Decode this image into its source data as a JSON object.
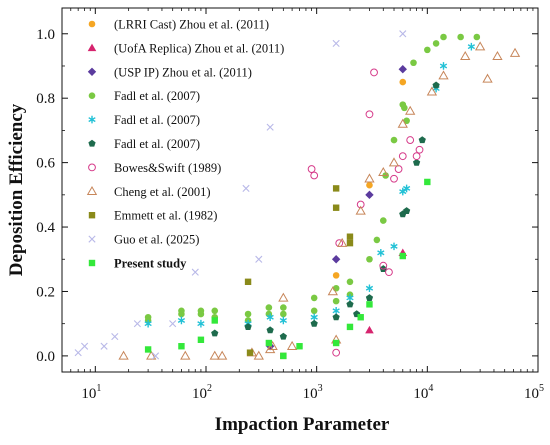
{
  "chart_data": {
    "type": "scatter",
    "xlabel": "Impaction Parameter",
    "ylabel": "Deposition Efficiency",
    "xscale": "log",
    "xlim": [
      5,
      100000
    ],
    "ylim": [
      -0.05,
      1.08
    ],
    "x_ticks": [
      {
        "value": 10,
        "mant": "10",
        "exp": "1"
      },
      {
        "value": 100,
        "mant": "10",
        "exp": "2"
      },
      {
        "value": 1000,
        "mant": "10",
        "exp": "3"
      },
      {
        "value": 10000,
        "mant": "10",
        "exp": "4"
      },
      {
        "value": 100000,
        "mant": "10",
        "exp": "5"
      }
    ],
    "y_ticks": [
      {
        "value": 0.0,
        "label": "0.0"
      },
      {
        "value": 0.2,
        "label": "0.2"
      },
      {
        "value": 0.4,
        "label": "0.4"
      },
      {
        "value": 0.6,
        "label": "0.6"
      },
      {
        "value": 0.8,
        "label": "0.8"
      },
      {
        "value": 1.0,
        "label": "1.0"
      }
    ],
    "grid": false,
    "legend_position": "top-left",
    "series": [
      {
        "name": "(LRRI Cast) Zhou et al. (2011)",
        "marker": "circle",
        "color": "#f5a623",
        "filled": true,
        "bold": false,
        "points": [
          [
            1500,
            0.25
          ],
          [
            3000,
            0.53
          ],
          [
            6000,
            0.85
          ]
        ]
      },
      {
        "name": "(UofA Replica) Zhou et al. (2011)",
        "marker": "triangle",
        "color": "#d6246e",
        "filled": true,
        "bold": false,
        "points": [
          [
            3000,
            0.08
          ],
          [
            6000,
            0.32
          ]
        ]
      },
      {
        "name": "(USP IP) Zhou et al. (2011)",
        "marker": "diamond",
        "color": "#5b3b9e",
        "filled": true,
        "bold": false,
        "points": [
          [
            380,
            0.03
          ],
          [
            1500,
            0.3
          ],
          [
            3000,
            0.5
          ],
          [
            6000,
            0.89
          ]
        ]
      },
      {
        "name": "Fadl et al. (2007)",
        "marker": "circle",
        "color": "#7ac943",
        "filled": true,
        "bold": false,
        "points": [
          [
            30,
            0.11
          ],
          [
            30,
            0.12
          ],
          [
            60,
            0.13
          ],
          [
            60,
            0.14
          ],
          [
            90,
            0.13
          ],
          [
            90,
            0.14
          ],
          [
            120,
            0.12
          ],
          [
            120,
            0.14
          ],
          [
            240,
            0.11
          ],
          [
            240,
            0.13
          ],
          [
            370,
            0.13
          ],
          [
            370,
            0.15
          ],
          [
            500,
            0.13
          ],
          [
            500,
            0.15
          ],
          [
            950,
            0.14
          ],
          [
            950,
            0.18
          ],
          [
            1500,
            0.17
          ],
          [
            1500,
            0.21
          ],
          [
            2000,
            0.19
          ],
          [
            2000,
            0.23
          ],
          [
            3000,
            0.3
          ],
          [
            3500,
            0.36
          ],
          [
            4000,
            0.42
          ],
          [
            4200,
            0.56
          ],
          [
            5000,
            0.67
          ],
          [
            6000,
            0.78
          ],
          [
            6200,
            0.77
          ],
          [
            6500,
            0.73
          ],
          [
            7500,
            0.91
          ],
          [
            10000,
            0.95
          ],
          [
            12000,
            0.97
          ],
          [
            14000,
            0.99
          ],
          [
            20000,
            0.99
          ],
          [
            28000,
            0.99
          ]
        ]
      },
      {
        "name": "Fadl et al. (2007)",
        "marker": "star",
        "color": "#22c1d6",
        "filled": true,
        "bold": false,
        "points": [
          [
            30,
            0.1
          ],
          [
            60,
            0.11
          ],
          [
            90,
            0.1
          ],
          [
            240,
            0.1
          ],
          [
            380,
            0.12
          ],
          [
            500,
            0.11
          ],
          [
            950,
            0.12
          ],
          [
            1500,
            0.14
          ],
          [
            2000,
            0.18
          ],
          [
            3000,
            0.21
          ],
          [
            3800,
            0.32
          ],
          [
            5000,
            0.34
          ],
          [
            6000,
            0.51
          ],
          [
            6500,
            0.52
          ],
          [
            12000,
            0.83
          ],
          [
            14000,
            0.9
          ],
          [
            25000,
            0.96
          ]
        ]
      },
      {
        "name": "Fadl et al. (2007)",
        "marker": "pentagon",
        "color": "#1e6b4d",
        "filled": true,
        "bold": false,
        "points": [
          [
            120,
            0.07
          ],
          [
            240,
            0.09
          ],
          [
            380,
            0.08
          ],
          [
            500,
            0.06
          ],
          [
            950,
            0.1
          ],
          [
            1500,
            0.12
          ],
          [
            2000,
            0.16
          ],
          [
            2300,
            0.13
          ],
          [
            3000,
            0.18
          ],
          [
            4000,
            0.27
          ],
          [
            6000,
            0.44
          ],
          [
            6500,
            0.45
          ],
          [
            8000,
            0.6
          ],
          [
            9000,
            0.67
          ],
          [
            12000,
            0.84
          ]
        ]
      },
      {
        "name": "Bowes&Swift (1989)",
        "marker": "circle",
        "color": "#d63b8a",
        "filled": false,
        "bold": false,
        "points": [
          [
            900,
            0.58
          ],
          [
            950,
            0.56
          ],
          [
            1500,
            0.01
          ],
          [
            1600,
            0.35
          ],
          [
            2500,
            0.47
          ],
          [
            3000,
            0.75
          ],
          [
            3300,
            0.88
          ],
          [
            4000,
            0.28
          ],
          [
            4500,
            0.26
          ],
          [
            5000,
            0.55
          ],
          [
            5500,
            0.58
          ],
          [
            6000,
            0.62
          ],
          [
            7000,
            0.67
          ],
          [
            8000,
            0.62
          ],
          [
            8500,
            0.64
          ]
        ]
      },
      {
        "name": "Cheng et al. (2001)",
        "marker": "triangle",
        "color": "#c7865a",
        "filled": false,
        "bold": false,
        "points": [
          [
            18,
            0.0
          ],
          [
            32,
            0.0
          ],
          [
            65,
            0.0
          ],
          [
            120,
            0.0
          ],
          [
            140,
            0.0
          ],
          [
            260,
            0.01
          ],
          [
            300,
            0.0
          ],
          [
            380,
            0.02
          ],
          [
            400,
            0.03
          ],
          [
            500,
            0.18
          ],
          [
            600,
            0.03
          ],
          [
            1400,
            0.2
          ],
          [
            1500,
            0.05
          ],
          [
            1700,
            0.35
          ],
          [
            2500,
            0.45
          ],
          [
            3000,
            0.55
          ],
          [
            4000,
            0.57
          ],
          [
            5000,
            0.6
          ],
          [
            6000,
            0.72
          ],
          [
            7000,
            0.76
          ],
          [
            11000,
            0.82
          ],
          [
            14000,
            0.87
          ],
          [
            22000,
            0.93
          ],
          [
            30000,
            0.96
          ],
          [
            35000,
            0.86
          ],
          [
            43000,
            0.93
          ],
          [
            62000,
            0.94
          ]
        ]
      },
      {
        "name": "Emmett et al. (1982)",
        "marker": "square",
        "color": "#8a8a1a",
        "filled": true,
        "bold": false,
        "points": [
          [
            240,
            0.23
          ],
          [
            250,
            0.01
          ],
          [
            500,
            0.0
          ],
          [
            1500,
            0.46
          ],
          [
            1500,
            0.52
          ],
          [
            2000,
            0.35
          ],
          [
            2000,
            0.37
          ]
        ]
      },
      {
        "name": "Guo et al. (2025)",
        "marker": "x",
        "color": "#b9b9e8",
        "filled": false,
        "bold": false,
        "points": [
          [
            7,
            0.01
          ],
          [
            8,
            0.03
          ],
          [
            12,
            0.03
          ],
          [
            15,
            0.06
          ],
          [
            24,
            0.1
          ],
          [
            35,
            0.0
          ],
          [
            50,
            0.1
          ],
          [
            80,
            0.26
          ],
          [
            230,
            0.52
          ],
          [
            300,
            0.3
          ],
          [
            380,
            0.71
          ],
          [
            1500,
            0.97
          ],
          [
            6000,
            1.0
          ]
        ]
      },
      {
        "name": "Present study",
        "marker": "square",
        "color": "#33e83a",
        "filled": true,
        "bold": true,
        "points": [
          [
            30,
            0.02
          ],
          [
            60,
            0.03
          ],
          [
            90,
            0.05
          ],
          [
            120,
            0.11
          ],
          [
            370,
            0.04
          ],
          [
            500,
            0.0
          ],
          [
            700,
            0.03
          ],
          [
            1500,
            0.04
          ],
          [
            2000,
            0.09
          ],
          [
            2500,
            0.12
          ],
          [
            3000,
            0.16
          ],
          [
            6000,
            0.31
          ],
          [
            10000,
            0.54
          ]
        ]
      }
    ]
  }
}
